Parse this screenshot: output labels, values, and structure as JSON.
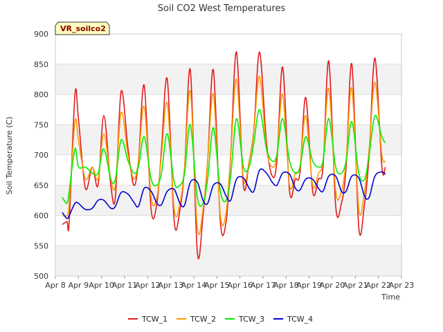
{
  "chart_data": {
    "type": "line",
    "title": "Soil CO2 West Temperatures",
    "xlabel": "Time",
    "ylabel": "Soil Temperature (C)",
    "badge": "VR_soilco2",
    "ylim": [
      500,
      900
    ],
    "yticks": [
      500,
      550,
      600,
      650,
      700,
      750,
      800,
      850,
      900
    ],
    "xticks": [
      "Apr 8",
      "Apr 9",
      "Apr 10",
      "Apr 11",
      "Apr 12",
      "Apr 13",
      "Apr 14",
      "Apr 15",
      "Apr 16",
      "Apr 17",
      "Apr 18",
      "Apr 19",
      "Apr 20",
      "Apr 21",
      "Apr 22",
      "Apr 23"
    ],
    "xlim": [
      0,
      15
    ],
    "x": [
      0.3,
      0.5,
      0.6,
      0.85,
      1.0,
      1.3,
      1.6,
      1.85,
      2.1,
      2.4,
      2.6,
      2.85,
      3.15,
      3.4,
      3.6,
      3.85,
      4.15,
      4.4,
      4.6,
      4.85,
      5.15,
      5.4,
      5.6,
      5.85,
      6.15,
      6.4,
      6.6,
      6.85,
      7.15,
      7.4,
      7.6,
      7.85,
      8.15,
      8.4,
      8.6,
      8.85,
      9.15,
      9.4,
      9.6,
      9.85,
      10.15,
      10.4,
      10.6,
      10.85,
      11.15,
      11.4,
      11.6,
      11.85,
      12.15,
      12.4,
      12.6,
      12.85,
      13.15,
      13.4,
      13.6,
      13.85,
      14.15,
      14.3
    ],
    "grid": true,
    "legend": "bottom",
    "series": [
      {
        "name": "TCW_1",
        "color": "#e31a1c",
        "values": [
          585,
          590,
          590,
          800,
          760,
          645,
          680,
          650,
          765,
          650,
          630,
          805,
          710,
          650,
          690,
          815,
          610,
          620,
          710,
          825,
          590,
          610,
          680,
          840,
          540,
          600,
          690,
          840,
          590,
          590,
          700,
          870,
          650,
          690,
          740,
          870,
          720,
          665,
          690,
          845,
          640,
          660,
          670,
          795,
          640,
          660,
          680,
          855,
          615,
          620,
          680,
          850,
          580,
          620,
          700,
          860,
          680,
          680
        ]
      },
      {
        "name": "TCW_2",
        "color": "#ff9900",
        "values": [
          600,
          600,
          620,
          755,
          725,
          660,
          680,
          660,
          735,
          660,
          650,
          770,
          700,
          660,
          690,
          780,
          630,
          630,
          700,
          785,
          610,
          620,
          680,
          805,
          580,
          610,
          690,
          800,
          600,
          605,
          700,
          825,
          660,
          690,
          740,
          830,
          710,
          680,
          700,
          800,
          650,
          670,
          680,
          765,
          650,
          670,
          690,
          810,
          640,
          640,
          690,
          810,
          610,
          640,
          710,
          820,
          700,
          690
        ]
      },
      {
        "name": "TCW_3",
        "color": "#00ee00",
        "values": [
          630,
          620,
          640,
          710,
          680,
          680,
          670,
          670,
          710,
          660,
          660,
          725,
          690,
          670,
          680,
          730,
          660,
          650,
          670,
          735,
          655,
          650,
          670,
          750,
          630,
          620,
          660,
          745,
          640,
          625,
          665,
          760,
          680,
          680,
          720,
          775,
          710,
          690,
          700,
          760,
          690,
          670,
          680,
          730,
          690,
          680,
          690,
          760,
          680,
          670,
          690,
          755,
          670,
          660,
          700,
          765,
          730,
          720
        ]
      },
      {
        "name": "TCW_4",
        "color": "#0000cc",
        "values": [
          605,
          595,
          600,
          620,
          620,
          610,
          612,
          625,
          625,
          612,
          615,
          638,
          635,
          622,
          615,
          645,
          640,
          620,
          618,
          640,
          643,
          620,
          617,
          655,
          655,
          625,
          620,
          650,
          652,
          632,
          625,
          660,
          662,
          645,
          640,
          675,
          670,
          655,
          650,
          670,
          668,
          645,
          642,
          660,
          660,
          645,
          640,
          665,
          665,
          640,
          640,
          665,
          662,
          632,
          630,
          665,
          672,
          668
        ]
      }
    ]
  }
}
